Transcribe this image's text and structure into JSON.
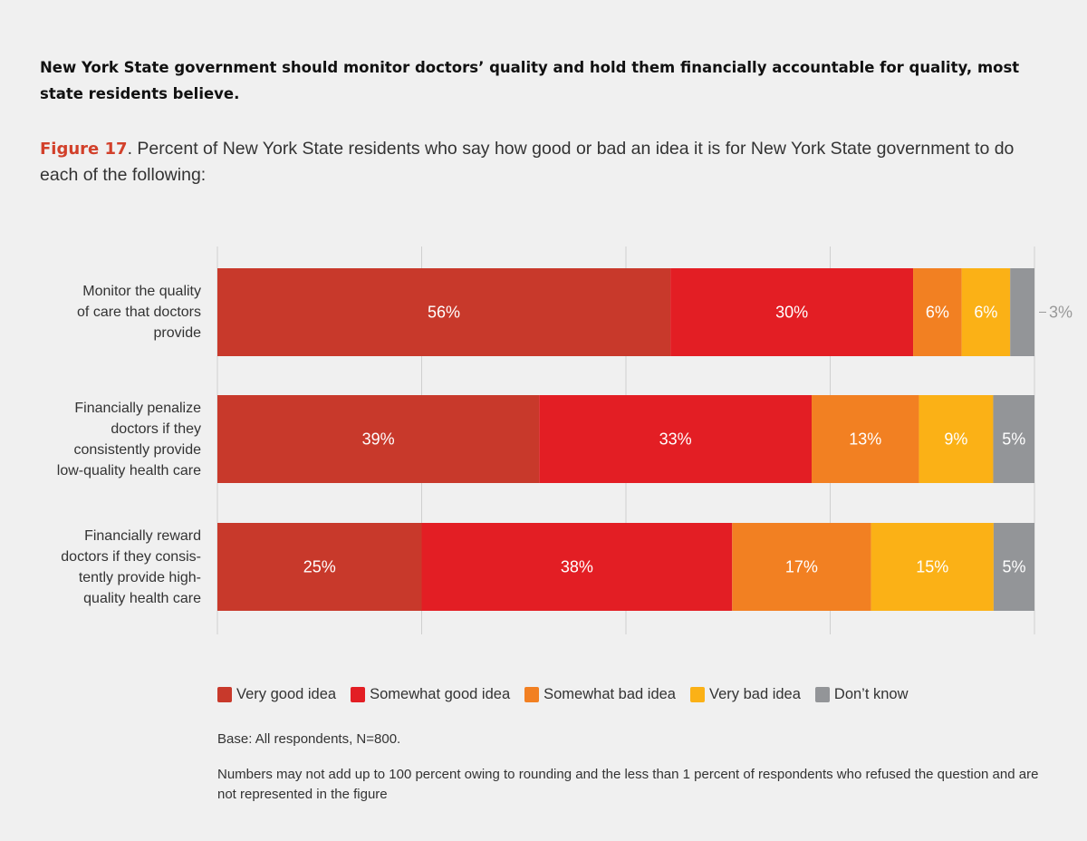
{
  "headline": "New York State government should monitor doctors’ quality and hold them financially accountable for quality, most state residents believe.",
  "caption": {
    "figure_label": "Figure 17",
    "text": ". Percent of New York State residents who say how good or bad an idea it is for New York State government to do each of the following:"
  },
  "chart_data": {
    "type": "bar",
    "orientation": "horizontal-stacked-100",
    "categories": [
      "Monitor the quality of care that doctors provide",
      "Financially penalize doctors if they consistently provide low-quality health care",
      "Financially reward doctors if they consistently provide high-quality health care"
    ],
    "category_lines": [
      [
        "Monitor the quality",
        "of care that doctors",
        "provide"
      ],
      [
        "Financially penalize",
        "doctors if they",
        "consistently provide",
        "low-quality health care"
      ],
      [
        "Financially reward",
        "doctors if they consis-",
        "tently provide high-",
        "quality health care"
      ]
    ],
    "series": [
      {
        "name": "Very good idea",
        "color": "#c8392b",
        "values": [
          56,
          39,
          25
        ]
      },
      {
        "name": "Somewhat good idea",
        "color": "#e31e24",
        "values": [
          30,
          33,
          38
        ]
      },
      {
        "name": "Somewhat bad idea",
        "color": "#f28022",
        "values": [
          6,
          13,
          17
        ]
      },
      {
        "name": "Very bad idea",
        "color": "#fbb116",
        "values": [
          6,
          9,
          15
        ]
      },
      {
        "name": "Don’t know",
        "color": "#939598",
        "values": [
          3,
          5,
          5
        ]
      }
    ],
    "xlim": [
      0,
      100
    ],
    "grid": true,
    "legend": "bottom"
  },
  "notes": {
    "base": "Base: All respondents, N=800.",
    "rounding": "Numbers may not add up to 100 percent owing to rounding and the less than 1 percent of respondents who refused the question and are not represented in the figure"
  }
}
